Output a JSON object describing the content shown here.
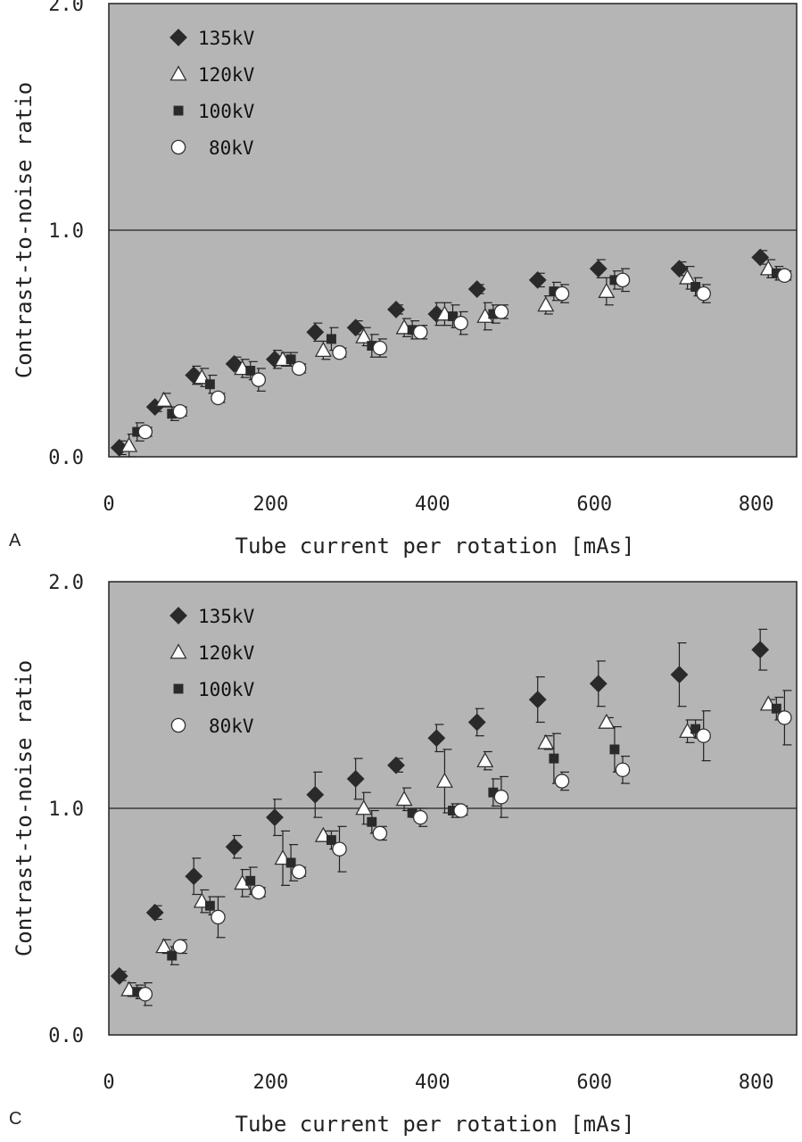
{
  "chart_data": [
    {
      "type": "scatter",
      "panel_label": "A",
      "xlabel": "Tube current per rotation [mAs]",
      "ylabel": "Contrast-to-noise ratio",
      "xlim": [
        0,
        850
      ],
      "ylim": [
        0.0,
        2.0
      ],
      "xticks": [
        "0",
        "200",
        "400",
        "600",
        "800"
      ],
      "yticks": [
        "0.0",
        "1.0",
        "2.0"
      ],
      "reference_line": 1.0,
      "grid": false,
      "legend_position": "top-left",
      "series": [
        {
          "name": "135kV",
          "marker": "diamond",
          "color": "#222222",
          "x": [
            13,
            57,
            105,
            155,
            205,
            255,
            305,
            355,
            405,
            455,
            530,
            605,
            705,
            805
          ],
          "y": [
            0.04,
            0.22,
            0.36,
            0.41,
            0.43,
            0.55,
            0.57,
            0.65,
            0.63,
            0.74,
            0.78,
            0.83,
            0.83,
            0.88
          ],
          "err": [
            0.03,
            0.02,
            0.04,
            0.03,
            0.04,
            0.04,
            0.03,
            0.02,
            0.05,
            0.02,
            0.03,
            0.04,
            0.03,
            0.03
          ]
        },
        {
          "name": "120kV",
          "marker": "triangle",
          "color": "#ffffff",
          "x": [
            25,
            68,
            115,
            165,
            215,
            265,
            315,
            365,
            415,
            465,
            540,
            615,
            715,
            815
          ],
          "y": [
            0.05,
            0.25,
            0.35,
            0.39,
            0.43,
            0.47,
            0.53,
            0.57,
            0.63,
            0.62,
            0.67,
            0.73,
            0.79,
            0.83
          ],
          "err": [
            0.05,
            0.03,
            0.04,
            0.04,
            0.03,
            0.04,
            0.04,
            0.04,
            0.05,
            0.06,
            0.04,
            0.06,
            0.05,
            0.04
          ]
        },
        {
          "name": "100kV",
          "marker": "square",
          "color": "#222222",
          "x": [
            35,
            78,
            125,
            175,
            225,
            275,
            325,
            375,
            425,
            475,
            550,
            625,
            725,
            825
          ],
          "y": [
            0.11,
            0.19,
            0.32,
            0.38,
            0.43,
            0.52,
            0.49,
            0.56,
            0.62,
            0.63,
            0.73,
            0.78,
            0.75,
            0.81
          ],
          "err": [
            0.04,
            0.03,
            0.04,
            0.04,
            0.03,
            0.05,
            0.05,
            0.04,
            0.05,
            0.04,
            0.04,
            0.04,
            0.04,
            0.03
          ]
        },
        {
          "name": "80kV",
          "marker": "circle",
          "color": "#ffffff",
          "x": [
            45,
            88,
            135,
            185,
            235,
            285,
            335,
            385,
            435,
            485,
            560,
            635,
            735,
            835
          ],
          "y": [
            0.11,
            0.2,
            0.26,
            0.34,
            0.39,
            0.46,
            0.48,
            0.55,
            0.59,
            0.64,
            0.72,
            0.78,
            0.72,
            0.8
          ],
          "err": [
            0.02,
            0.02,
            0.02,
            0.05,
            0.02,
            0.02,
            0.04,
            0.03,
            0.05,
            0.03,
            0.04,
            0.05,
            0.04,
            0.02
          ]
        }
      ]
    },
    {
      "type": "scatter",
      "panel_label": "C",
      "xlabel": "Tube current per rotation [mAs]",
      "ylabel": "Contrast-to-noise ratio",
      "xlim": [
        0,
        850
      ],
      "ylim": [
        0.0,
        2.0
      ],
      "xticks": [
        "0",
        "200",
        "400",
        "600",
        "800"
      ],
      "yticks": [
        "0.0",
        "1.0",
        "2.0"
      ],
      "reference_line": 1.0,
      "grid": false,
      "legend_position": "top-left",
      "series": [
        {
          "name": "135kV",
          "marker": "diamond",
          "color": "#222222",
          "x": [
            13,
            57,
            105,
            155,
            205,
            255,
            305,
            355,
            405,
            455,
            530,
            605,
            705,
            805
          ],
          "y": [
            0.26,
            0.54,
            0.7,
            0.83,
            0.96,
            1.06,
            1.13,
            1.19,
            1.31,
            1.38,
            1.48,
            1.55,
            1.59,
            1.7
          ],
          "err": [
            0.02,
            0.03,
            0.08,
            0.05,
            0.08,
            0.1,
            0.09,
            0.03,
            0.06,
            0.06,
            0.1,
            0.1,
            0.14,
            0.09
          ]
        },
        {
          "name": "120kV",
          "marker": "triangle",
          "color": "#ffffff",
          "x": [
            25,
            68,
            115,
            165,
            215,
            265,
            315,
            365,
            415,
            465,
            540,
            615,
            715,
            815
          ],
          "y": [
            0.2,
            0.39,
            0.59,
            0.67,
            0.78,
            0.88,
            1.0,
            1.04,
            1.12,
            1.21,
            1.29,
            1.38,
            1.34,
            1.46
          ],
          "err": [
            0.03,
            0.03,
            0.05,
            0.06,
            0.12,
            0.02,
            0.07,
            0.05,
            0.14,
            0.04,
            0.03,
            0.02,
            0.05,
            0.02
          ]
        },
        {
          "name": "100kV",
          "marker": "square",
          "color": "#222222",
          "x": [
            35,
            78,
            125,
            175,
            225,
            275,
            325,
            375,
            425,
            475,
            550,
            625,
            725,
            825
          ],
          "y": [
            0.19,
            0.35,
            0.57,
            0.68,
            0.76,
            0.86,
            0.94,
            0.98,
            0.99,
            1.07,
            1.22,
            1.26,
            1.35,
            1.44
          ],
          "err": [
            0.03,
            0.04,
            0.04,
            0.06,
            0.08,
            0.04,
            0.05,
            0.02,
            0.03,
            0.06,
            0.11,
            0.1,
            0.04,
            0.05
          ]
        },
        {
          "name": "80kV",
          "marker": "circle",
          "color": "#ffffff",
          "x": [
            45,
            88,
            135,
            185,
            235,
            285,
            335,
            385,
            435,
            485,
            560,
            635,
            735,
            835
          ],
          "y": [
            0.18,
            0.39,
            0.52,
            0.63,
            0.72,
            0.82,
            0.89,
            0.96,
            0.99,
            1.05,
            1.12,
            1.17,
            1.32,
            1.4
          ],
          "err": [
            0.05,
            0.03,
            0.09,
            0.02,
            0.02,
            0.1,
            0.03,
            0.04,
            0.02,
            0.09,
            0.04,
            0.06,
            0.11,
            0.12
          ]
        }
      ]
    }
  ]
}
